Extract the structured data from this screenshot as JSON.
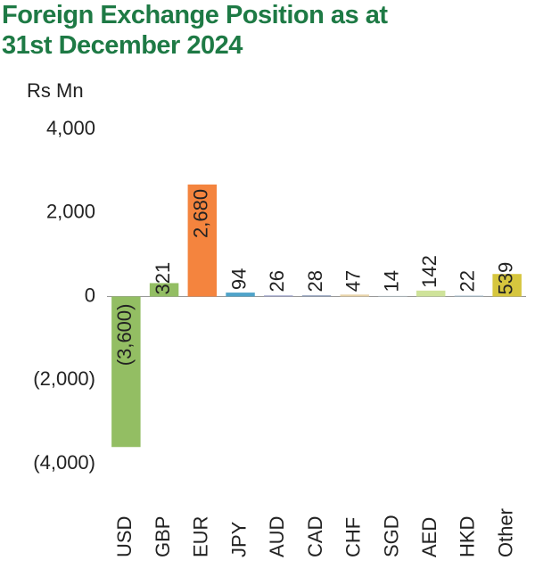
{
  "chart_data": {
    "type": "bar",
    "title": "Foreign Exchange Position as at 31st December 2024",
    "y_label": "Rs Mn",
    "categories": [
      "USD",
      "GBP",
      "EUR",
      "JPY",
      "AUD",
      "CAD",
      "CHF",
      "SGD",
      "AED",
      "HKD",
      "Other"
    ],
    "values": [
      -3600,
      321,
      2680,
      94,
      26,
      28,
      47,
      14,
      142,
      22,
      539
    ],
    "value_labels": [
      "(3,600)",
      "321",
      "2,680",
      "94",
      "26",
      "28",
      "47",
      "14",
      "142",
      "22",
      "539"
    ],
    "colors": [
      "#93be63",
      "#93be63",
      "#f4843e",
      "#4fa3c9",
      "#9aa0c8",
      "#8a9ab8",
      "#e8d3a8",
      "#b8c6cf",
      "#cfe39a",
      "#a8bfd0",
      "#d6c63e"
    ],
    "ylim": [
      -4000,
      4000
    ],
    "yticks": [
      {
        "value": -4000,
        "label": "(4,000)"
      },
      {
        "value": -2000,
        "label": "(2,000)"
      },
      0,
      {
        "value": 2000,
        "label": "2,000"
      },
      {
        "value": 4000,
        "label": "4,000"
      }
    ],
    "grid": false
  }
}
